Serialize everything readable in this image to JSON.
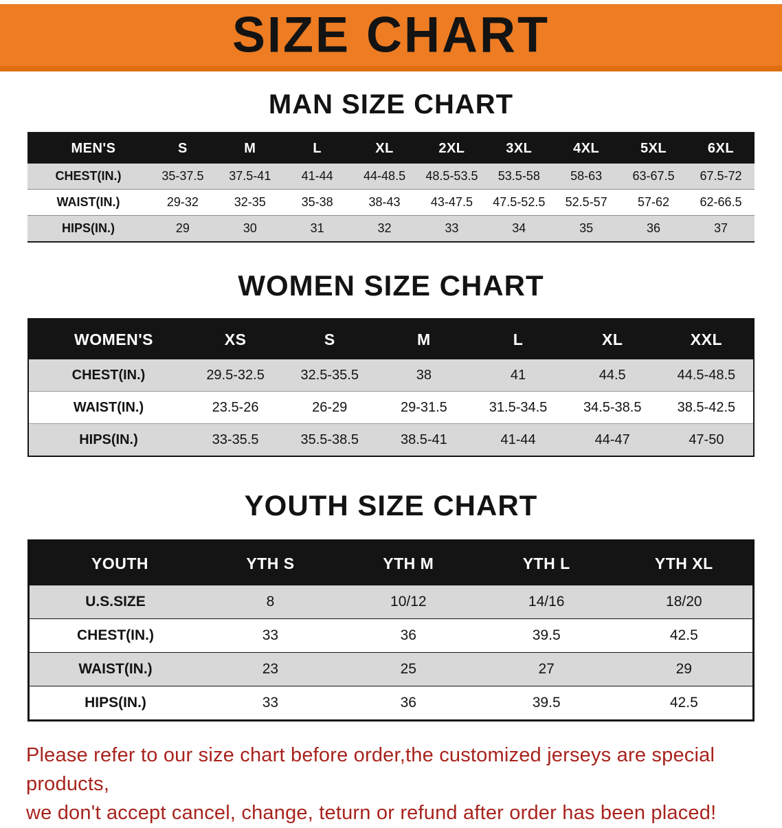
{
  "banner": {
    "title": "SIZE CHART"
  },
  "sections": [
    {
      "id": "men",
      "heading": "MAN SIZE CHART",
      "table": {
        "corner_label": "MEN'S",
        "columns": [
          "S",
          "M",
          "L",
          "XL",
          "2XL",
          "3XL",
          "4XL",
          "5XL",
          "6XL"
        ],
        "rows": [
          {
            "label": "CHEST(IN.)",
            "values": [
              "35-37.5",
              "37.5-41",
              "41-44",
              "44-48.5",
              "48.5-53.5",
              "53.5-58",
              "58-63",
              "63-67.5",
              "67.5-72"
            ]
          },
          {
            "label": "WAIST(IN.)",
            "values": [
              "29-32",
              "32-35",
              "35-38",
              "38-43",
              "43-47.5",
              "47.5-52.5",
              "52.5-57",
              "57-62",
              "62-66.5"
            ]
          },
          {
            "label": "HIPS(IN.)",
            "values": [
              "29",
              "30",
              "31",
              "32",
              "33",
              "34",
              "35",
              "36",
              "37"
            ]
          }
        ]
      }
    },
    {
      "id": "women",
      "heading": "WOMEN SIZE CHART",
      "table": {
        "corner_label": "WOMEN'S",
        "columns": [
          "XS",
          "S",
          "M",
          "L",
          "XL",
          "XXL"
        ],
        "rows": [
          {
            "label": "CHEST(IN.)",
            "values": [
              "29.5-32.5",
              "32.5-35.5",
              "38",
              "41",
              "44.5",
              "44.5-48.5"
            ]
          },
          {
            "label": "WAIST(IN.)",
            "values": [
              "23.5-26",
              "26-29",
              "29-31.5",
              "31.5-34.5",
              "34.5-38.5",
              "38.5-42.5"
            ]
          },
          {
            "label": "HIPS(IN.)",
            "values": [
              "33-35.5",
              "35.5-38.5",
              "38.5-41",
              "41-44",
              "44-47",
              "47-50"
            ]
          }
        ]
      }
    },
    {
      "id": "youth",
      "heading": "YOUTH SIZE CHART",
      "table": {
        "corner_label": "YOUTH",
        "columns": [
          "YTH S",
          "YTH M",
          "YTH L",
          "YTH XL"
        ],
        "rows": [
          {
            "label": "U.S.SIZE",
            "values": [
              "8",
              "10/12",
              "14/16",
              "18/20"
            ]
          },
          {
            "label": "CHEST(IN.)",
            "values": [
              "33",
              "36",
              "39.5",
              "42.5"
            ]
          },
          {
            "label": "WAIST(IN.)",
            "values": [
              "23",
              "25",
              "27",
              "29"
            ]
          },
          {
            "label": "HIPS(IN.)",
            "values": [
              "33",
              "36",
              "39.5",
              "42.5"
            ]
          }
        ]
      }
    }
  ],
  "footer": {
    "line1": "Please refer to our size chart before order,the customized jerseys are special products,",
    "line2": "we don't accept cancel, change, teturn or refund after order has been placed!"
  },
  "colors": {
    "banner_orange": "#ed7c23",
    "banner_orange_dark": "#e06f10",
    "header_black": "#141414",
    "row_gray": "#d8d8d8",
    "row_white": "#ffffff",
    "footer_red": "#a8231d"
  }
}
